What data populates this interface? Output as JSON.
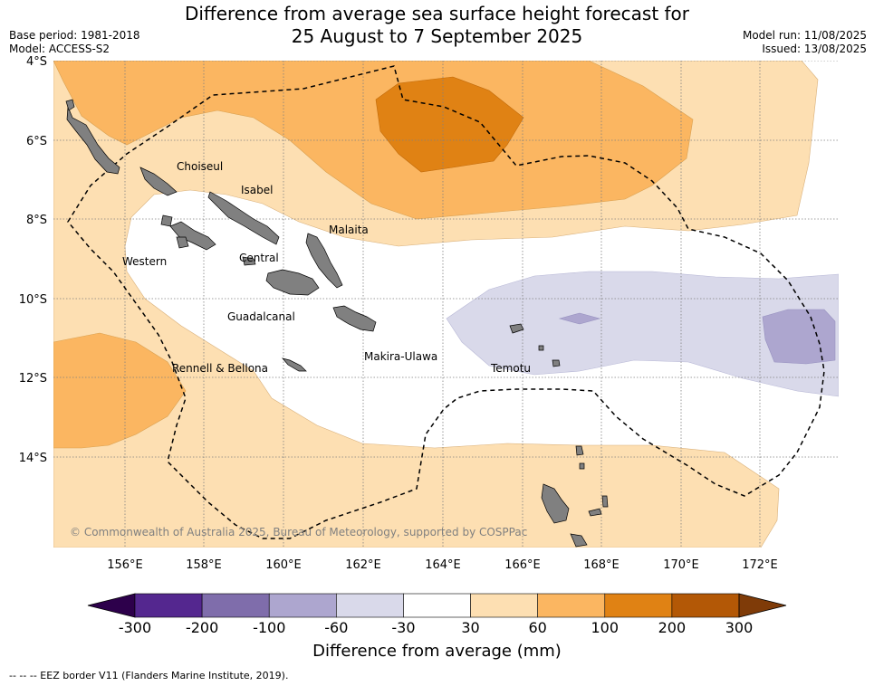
{
  "title_line1": "Difference from average sea surface height forecast for",
  "title_line2": "25 August to 7 September 2025",
  "base_period": "Base period: 1981-2018",
  "model": "Model: ACCESS-S2",
  "model_run": "Model run: 11/08/2025",
  "issued": "Issued: 13/08/2025",
  "lat_labels": [
    "4°S",
    "6°S",
    "8°S",
    "10°S",
    "12°S",
    "14°S"
  ],
  "lon_labels": [
    "156°E",
    "158°E",
    "160°E",
    "162°E",
    "164°E",
    "166°E",
    "168°E",
    "170°E",
    "172°E"
  ],
  "provinces": [
    "Choiseul",
    "Isabel",
    "Malaita",
    "Western",
    "Central",
    "Guadalcanal",
    "Makira-Ulawa",
    "Rennell & Bellona",
    "Temotu"
  ],
  "copyright": "© Commonwealth of Australia 2025, Bureau of Meteorology, supported by COSPPac",
  "colorbar": {
    "ticks": [
      "-300",
      "-200",
      "-100",
      "-60",
      "-30",
      "30",
      "60",
      "100",
      "200",
      "300"
    ],
    "colors": [
      "#54278f",
      "#7f6dab",
      "#ada6cf",
      "#d9d9ea",
      "#ffffff",
      "#fddfb2",
      "#fbb661",
      "#e08214",
      "#b35806"
    ],
    "under_color": "#2d004b",
    "over_color": "#7f3b08",
    "label": "Difference from average (mm)"
  },
  "footnote": "-- -- -- EEZ border V11 (Flanders Marine Institute, 2019).",
  "colors": {
    "land": "#808080",
    "eez": "#000000",
    "grid": "#808080"
  }
}
